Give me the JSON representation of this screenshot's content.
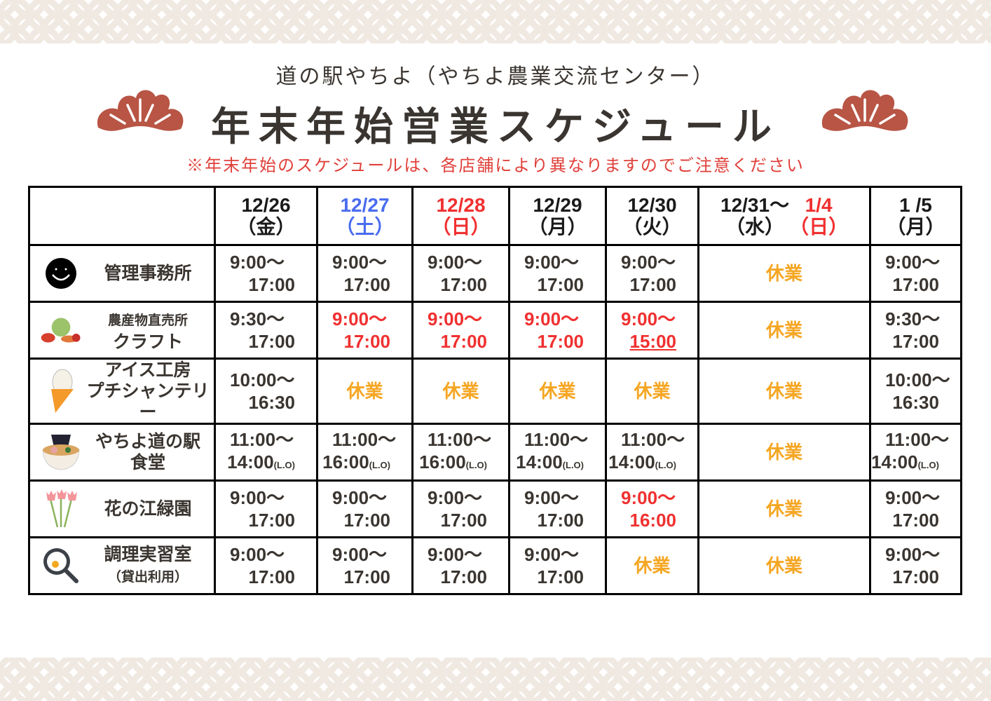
{
  "header": {
    "subtitle": "道の駅やちよ（やちよ農業交流センター）",
    "title": "年末年始営業スケジュール",
    "note": "※年末年始のスケジュールは、各店舗により異なりますのでご注意ください"
  },
  "colors": {
    "closed": "#f5a623",
    "red": "#f03030",
    "blue": "#4a6cf0",
    "pine": "#b85545",
    "pattern": "#f0e9e2"
  },
  "columns": [
    {
      "date": "12/26",
      "day": "（金）",
      "color": "dark"
    },
    {
      "date": "12/27",
      "day": "（土）",
      "color": "blue"
    },
    {
      "date": "12/28",
      "day": "（日）",
      "color": "red"
    },
    {
      "date": "12/29",
      "day": "（月）",
      "color": "dark"
    },
    {
      "date": "12/30",
      "day": "（火）",
      "color": "dark"
    },
    {
      "date": "12/31〜",
      "date2": "1/4",
      "day": "（水）",
      "day2": "（日）",
      "color": "dark",
      "color2": "red"
    },
    {
      "date": "1 /5",
      "day": "（月）",
      "color": "dark"
    }
  ],
  "rows": [
    {
      "icon": "smiley-icon",
      "name": [
        "管理事務所"
      ],
      "cells": [
        {
          "open": "9:00〜",
          "close": "17:00"
        },
        {
          "open": "9:00〜",
          "close": "17:00"
        },
        {
          "open": "9:00〜",
          "close": "17:00"
        },
        {
          "open": "9:00〜",
          "close": "17:00"
        },
        {
          "open": "9:00〜",
          "close": "17:00"
        },
        {
          "closed": "休業"
        },
        {
          "open": "9:00〜",
          "close": "17:00"
        }
      ]
    },
    {
      "icon": "vegetables-icon",
      "name": [
        "農産物直売所",
        "クラフト"
      ],
      "cells": [
        {
          "open": "9:30〜",
          "close": "17:00"
        },
        {
          "open": "9:00〜",
          "close": "17:00",
          "color": "red"
        },
        {
          "open": "9:00〜",
          "close": "17:00",
          "color": "red"
        },
        {
          "open": "9:00〜",
          "close": "17:00",
          "color": "red"
        },
        {
          "open": "9:00〜",
          "close": "15:00",
          "color": "red",
          "underline": true
        },
        {
          "closed": "休業"
        },
        {
          "open": "9:30〜",
          "close": "17:00"
        }
      ]
    },
    {
      "icon": "ice-cream-icon",
      "name": [
        "アイス工房",
        "プチシャンテリー"
      ],
      "cells": [
        {
          "open": "10:00〜",
          "close": "16:30"
        },
        {
          "closed": "休業"
        },
        {
          "closed": "休業"
        },
        {
          "closed": "休業"
        },
        {
          "closed": "休業"
        },
        {
          "closed": "休業"
        },
        {
          "open": "10:00〜",
          "close": "16:30"
        }
      ]
    },
    {
      "icon": "ramen-icon",
      "name": [
        "やちよ道の駅",
        "食堂"
      ],
      "cells": [
        {
          "open": "11:00〜",
          "close": "14:00",
          "lo": "(L.O)"
        },
        {
          "open": "11:00〜",
          "close": "16:00",
          "lo": "(L.O)"
        },
        {
          "open": "11:00〜",
          "close": "16:00",
          "lo": "(L.O)"
        },
        {
          "open": "11:00〜",
          "close": "14:00",
          "lo": "(L.O)"
        },
        {
          "open": "11:00〜",
          "close": "14:00",
          "lo": "(L.O)"
        },
        {
          "closed": "休業"
        },
        {
          "open": "11:00〜",
          "close": "14:00",
          "lo": "(L.O)"
        }
      ]
    },
    {
      "icon": "tulip-icon",
      "name": [
        "花の江緑園"
      ],
      "cells": [
        {
          "open": "9:00〜",
          "close": "17:00"
        },
        {
          "open": "9:00〜",
          "close": "17:00"
        },
        {
          "open": "9:00〜",
          "close": "17:00"
        },
        {
          "open": "9:00〜",
          "close": "17:00"
        },
        {
          "open": "9:00〜",
          "close": "16:00",
          "color": "red"
        },
        {
          "closed": "休業"
        },
        {
          "open": "9:00〜",
          "close": "17:00"
        }
      ]
    },
    {
      "icon": "frying-pan-icon",
      "name": [
        "調理実習室",
        "（貸出利用）"
      ],
      "cells": [
        {
          "open": "9:00〜",
          "close": "17:00"
        },
        {
          "open": "9:00〜",
          "close": "17:00"
        },
        {
          "open": "9:00〜",
          "close": "17:00"
        },
        {
          "open": "9:00〜",
          "close": "17:00"
        },
        {
          "closed": "休業"
        },
        {
          "closed": "休業"
        },
        {
          "open": "9:00〜",
          "close": "17:00"
        }
      ]
    }
  ]
}
